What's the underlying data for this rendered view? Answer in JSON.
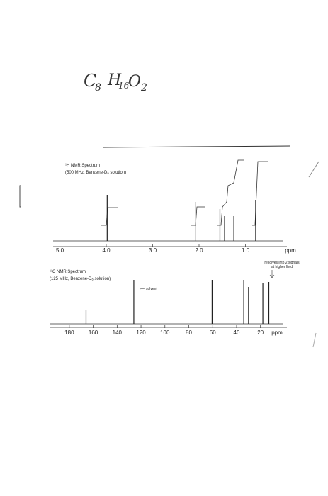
{
  "formula": {
    "parts": [
      "C",
      "8",
      "H",
      "16",
      "O",
      "2"
    ]
  },
  "h_nmr": {
    "title": "¹H NMR Spectrum",
    "subtitle": "(500 MHz, Benzene-D₆ solution)",
    "xlim": [
      5.0,
      0.0
    ],
    "xticks": [
      {
        "value": 5,
        "label": "5.0"
      },
      {
        "value": 4,
        "label": "4.0"
      },
      {
        "value": 3,
        "label": "3.0"
      },
      {
        "value": 2,
        "label": "2.0"
      },
      {
        "value": 1,
        "label": "1.0"
      }
    ],
    "unit": "ppm",
    "peaks": [
      3.98,
      2.07,
      1.55,
      1.45,
      1.25,
      0.78
    ],
    "intensities": [
      65,
      55,
      45,
      35,
      35,
      58
    ]
  },
  "c_nmr": {
    "title": "¹³C NMR Spectrum",
    "subtitle": "(125 MHz, Benzene-D₆ solution)",
    "xlim": [
      190,
      5
    ],
    "xticks": [
      180,
      160,
      140,
      120,
      100,
      80,
      60,
      40,
      20
    ],
    "unit": "ppm",
    "peaks": [
      166,
      126,
      60.5,
      34,
      30,
      18,
      13
    ],
    "intensities": [
      20,
      62,
      62,
      62,
      52,
      57,
      59
    ],
    "solvent_label": "solvent",
    "note": [
      "resolves into 2 signals",
      "at higher field"
    ]
  }
}
